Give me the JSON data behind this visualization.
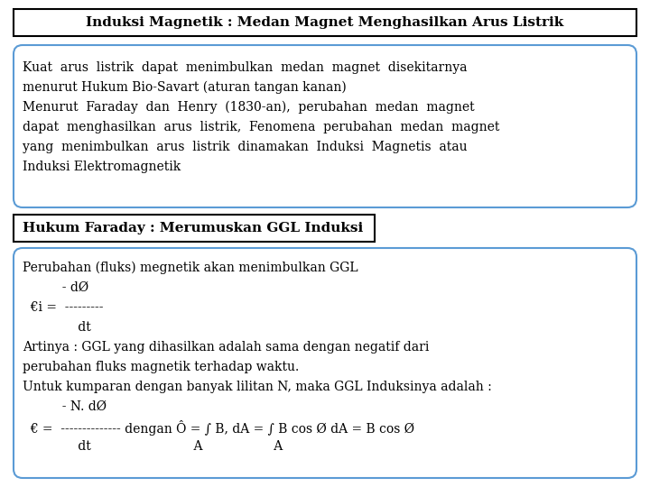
{
  "bg_color": "#ffffff",
  "title1_text": "Induksi Magnetik : Medan Magnet Menghasilkan Arus Listrik",
  "title1_box_color": "#000000",
  "title1_fill": "#ffffff",
  "title2_text": "Hukum Faraday : Merumuskan GGL Induksi",
  "title2_box_color": "#000000",
  "title2_fill": "#ffffff",
  "box1_border": "#5b9bd5",
  "box2_border": "#5b9bd5",
  "box1_lines": [
    "Kuat  arus  listrik  dapat  menimbulkan  medan  magnet  disekitarnya",
    "menurut Hukum Bio-Savart (aturan tangan kanan)",
    "Menurut  Faraday  dan  Henry  (1830-an),  perubahan  medan  magnet",
    "dapat  menghasilkan  arus  listrik,  Fenomena  perubahan  medan  magnet",
    "yang  menimbulkan  arus  listrik  dinamakan  Induksi  Magnetis  atau",
    "Induksi Elektromagnetik"
  ],
  "box2_lines": [
    "Perubahan (fluks) megnetik akan menimbulkan GGL",
    "          - dØ",
    "  €i =  ---------",
    "              dt",
    "Artinya : GGL yang dihasilkan adalah sama dengan negatif dari",
    "perubahan fluks magnetik terhadap waktu.",
    "Untuk kumparan dengan banyak lilitan N, maka GGL Induksinya adalah :",
    "          - N. dØ",
    "  € =  -------------- dengan Ô = ∫ B, dA = ∫ B cos Ø dA = B cos Ø",
    "              dt                          A                  A"
  ],
  "font_size_title": 11,
  "font_size_body": 10
}
